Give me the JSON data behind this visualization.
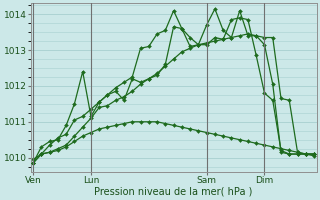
{
  "background_color": "#cce8e8",
  "grid_color": "#a8d0d0",
  "line_color": "#1e6b1e",
  "ylabel": "Pression niveau de la mer( hPa )",
  "ylim": [
    1009.6,
    1014.3
  ],
  "yticks": [
    1010,
    1011,
    1012,
    1013,
    1014
  ],
  "xtick_labels": [
    "Ven",
    "Lun",
    "Sam",
    "Dim"
  ],
  "xtick_positions": [
    0,
    7,
    21,
    28
  ],
  "vline_positions": [
    0,
    7,
    21,
    28
  ],
  "n_points": 35,
  "series1_x": [
    0,
    1,
    2,
    3,
    4,
    5,
    6,
    7,
    8,
    9,
    10,
    11,
    12,
    13,
    14,
    15,
    16,
    17,
    18,
    19,
    20,
    21,
    22,
    23,
    24,
    25,
    26,
    27,
    28,
    29,
    30,
    31,
    32,
    33,
    34
  ],
  "series1": [
    1009.85,
    1010.1,
    1010.35,
    1010.55,
    1010.65,
    1011.05,
    1011.15,
    1011.35,
    1011.55,
    1011.75,
    1011.95,
    1012.1,
    1012.25,
    1013.05,
    1013.1,
    1013.45,
    1013.55,
    1014.1,
    1013.6,
    1013.1,
    1013.15,
    1013.15,
    1013.35,
    1013.3,
    1013.85,
    1013.9,
    1013.85,
    1012.85,
    1011.8,
    1011.6,
    1010.2,
    1010.1,
    1010.1,
    1010.1,
    1010.1
  ],
  "series2": [
    1009.85,
    1010.3,
    1010.45,
    1010.5,
    1010.9,
    1011.5,
    1012.4,
    1011.15,
    1011.55,
    1011.75,
    1011.85,
    1011.6,
    1012.2,
    1012.1,
    1012.2,
    1012.3,
    1012.6,
    1013.65,
    1013.6,
    1013.35,
    1013.15,
    1013.7,
    1014.15,
    1013.55,
    1013.35,
    1014.1,
    1013.4,
    1013.4,
    1013.35,
    1013.35,
    1011.65,
    1011.6,
    1010.15,
    1010.1,
    1010.1
  ],
  "series3": [
    1009.85,
    1010.1,
    1010.15,
    1010.25,
    1010.35,
    1010.6,
    1010.85,
    1011.1,
    1011.4,
    1011.45,
    1011.6,
    1011.7,
    1011.85,
    1012.05,
    1012.2,
    1012.35,
    1012.55,
    1012.75,
    1012.95,
    1013.05,
    1013.15,
    1013.2,
    1013.25,
    1013.3,
    1013.35,
    1013.4,
    1013.45,
    1013.4,
    1013.15,
    1012.05,
    1010.15,
    1010.1,
    1010.1,
    1010.1,
    1010.1
  ],
  "series4": [
    1009.95,
    1010.1,
    1010.15,
    1010.2,
    1010.3,
    1010.45,
    1010.6,
    1010.7,
    1010.8,
    1010.85,
    1010.9,
    1010.95,
    1011.0,
    1011.0,
    1011.0,
    1011.0,
    1010.95,
    1010.9,
    1010.85,
    1010.8,
    1010.75,
    1010.7,
    1010.65,
    1010.6,
    1010.55,
    1010.5,
    1010.45,
    1010.4,
    1010.35,
    1010.3,
    1010.25,
    1010.2,
    1010.15,
    1010.1,
    1010.05
  ],
  "figsize": [
    3.2,
    2.0
  ],
  "dpi": 100
}
